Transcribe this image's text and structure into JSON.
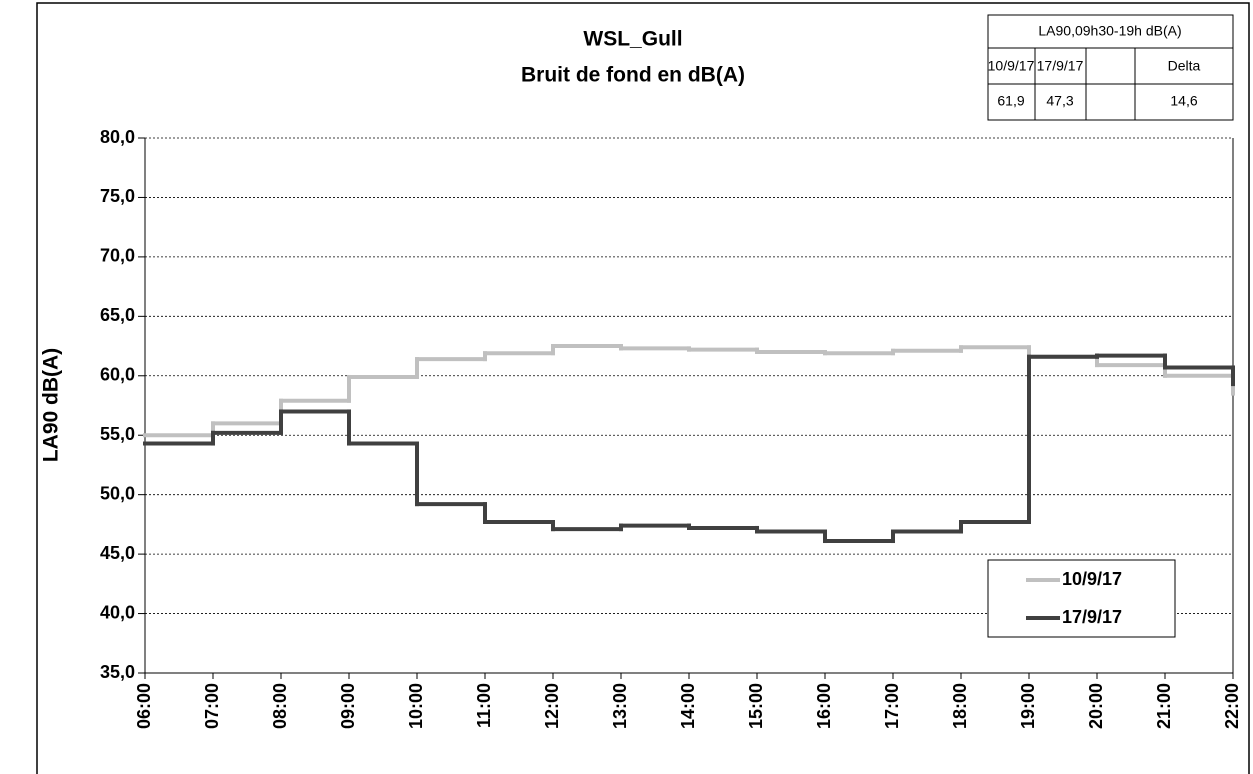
{
  "chart_data": {
    "type": "step-line",
    "step": "post",
    "title": "WSL_Gull",
    "subtitle": "Bruit de fond en dB(A)",
    "y_label": "LA90 dB(A)",
    "categories": [
      "06:00",
      "07:00",
      "08:00",
      "09:00",
      "10:00",
      "11:00",
      "12:00",
      "13:00",
      "14:00",
      "15:00",
      "16:00",
      "17:00",
      "18:00",
      "19:00",
      "20:00",
      "21:00",
      "22:00"
    ],
    "series": [
      {
        "name": "10/9/17",
        "color": "#c0c0c0",
        "values": [
          55.0,
          56.0,
          57.9,
          59.9,
          61.4,
          61.9,
          62.5,
          62.3,
          62.2,
          62.0,
          61.9,
          62.1,
          62.4,
          61.6,
          60.9,
          60.0,
          58.5
        ]
      },
      {
        "name": "17/9/17",
        "color": "#404040",
        "values": [
          54.3,
          55.2,
          57.0,
          54.3,
          49.2,
          47.7,
          47.1,
          47.4,
          47.2,
          46.9,
          46.1,
          46.9,
          47.7,
          61.6,
          61.7,
          60.7,
          59.3
        ]
      }
    ],
    "ylim": [
      35,
      80
    ],
    "yticks": [
      {
        "value": 35,
        "label": "35,0"
      },
      {
        "value": 40,
        "label": "40,0"
      },
      {
        "value": 45,
        "label": "45,0"
      },
      {
        "value": 50,
        "label": "50,0"
      },
      {
        "value": 55,
        "label": "55,0"
      },
      {
        "value": 60,
        "label": "60,0"
      },
      {
        "value": 65,
        "label": "65,0"
      },
      {
        "value": 70,
        "label": "70,0"
      },
      {
        "value": 75,
        "label": "75,0"
      },
      {
        "value": 80,
        "label": "80,0"
      }
    ],
    "grid": true,
    "legend": "bottom-right",
    "summary_table": {
      "title": "LA90,09h30-19h dB(A)",
      "headers": [
        "10/9/17",
        "17/9/17",
        "Delta"
      ],
      "rows": [
        [
          "61,9",
          "47,3",
          "14,6"
        ]
      ]
    }
  }
}
